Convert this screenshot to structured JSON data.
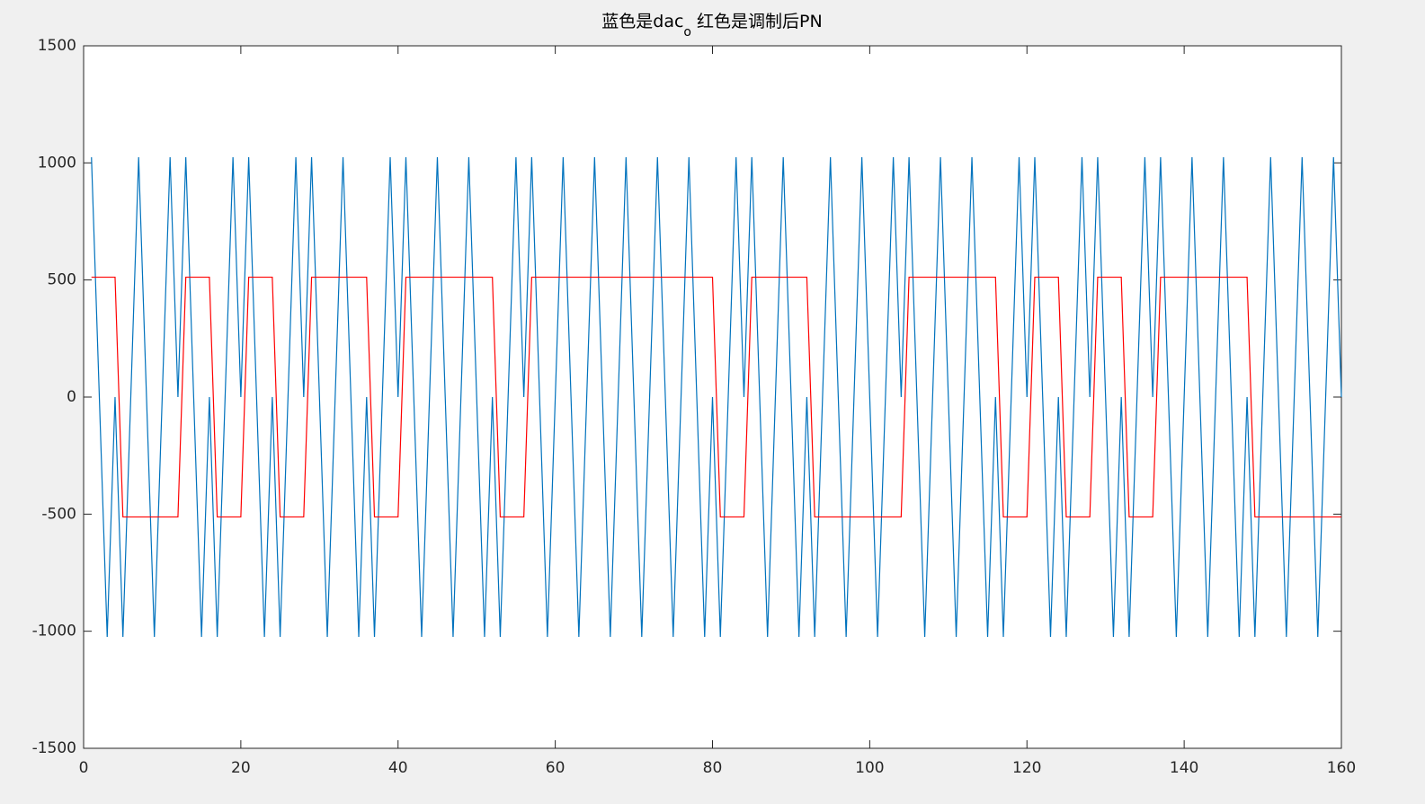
{
  "chart_data": {
    "type": "line",
    "title_parts": [
      "蓝色是dac",
      "o",
      " 红色是调制后PN"
    ],
    "x": [
      1,
      2,
      3,
      4,
      5,
      6,
      7,
      8,
      9,
      10,
      11,
      12,
      13,
      14,
      15,
      16,
      17,
      18,
      19,
      20,
      21,
      22,
      23,
      24,
      25,
      26,
      27,
      28,
      29,
      30,
      31,
      32,
      33,
      34,
      35,
      36,
      37,
      38,
      39,
      40,
      41,
      42,
      43,
      44,
      45,
      46,
      47,
      48,
      49,
      50,
      51,
      52,
      53,
      54,
      55,
      56,
      57,
      58,
      59,
      60,
      61,
      62,
      63,
      64,
      65,
      66,
      67,
      68,
      69,
      70,
      71,
      72,
      73,
      74,
      75,
      76,
      77,
      78,
      79,
      80,
      81,
      82,
      83,
      84,
      85,
      86,
      87,
      88,
      89,
      90,
      91,
      92,
      93,
      94,
      95,
      96,
      97,
      98,
      99,
      100,
      101,
      102,
      103,
      104,
      105,
      106,
      107,
      108,
      109,
      110,
      111,
      112,
      113,
      114,
      115,
      116,
      117,
      118,
      119,
      120,
      121,
      122,
      123,
      124,
      125,
      126,
      127,
      128,
      129,
      130,
      131,
      132,
      133,
      134,
      135,
      136,
      137,
      138,
      139,
      140,
      141,
      142,
      143,
      144,
      145,
      146,
      147,
      148,
      149,
      150,
      151,
      152,
      153,
      154,
      155,
      156,
      157,
      158,
      159,
      160
    ],
    "series": [
      {
        "color": "#0072bd",
        "values": [
          1024,
          0,
          -1024,
          0,
          -1024,
          0,
          1024,
          0,
          -1024,
          0,
          1024,
          0,
          1024,
          0,
          -1024,
          0,
          -1024,
          0,
          1024,
          0,
          1024,
          0,
          -1024,
          0,
          -1024,
          0,
          1024,
          0,
          1024,
          0,
          -1024,
          0,
          1024,
          0,
          -1024,
          0,
          -1024,
          0,
          1024,
          0,
          1024,
          0,
          -1024,
          0,
          1024,
          0,
          -1024,
          0,
          1024,
          0,
          -1024,
          0,
          -1024,
          0,
          1024,
          0,
          1024,
          0,
          -1024,
          0,
          1024,
          0,
          -1024,
          0,
          1024,
          0,
          -1024,
          0,
          1024,
          0,
          -1024,
          0,
          1024,
          0,
          -1024,
          0,
          1024,
          0,
          -1024,
          0,
          -1024,
          0,
          1024,
          0,
          1024,
          0,
          -1024,
          0,
          1024,
          0,
          -1024,
          0,
          -1024,
          0,
          1024,
          0,
          -1024,
          0,
          1024,
          0,
          -1024,
          0,
          1024,
          0,
          1024,
          0,
          -1024,
          0,
          1024,
          0,
          -1024,
          0,
          1024,
          0,
          -1024,
          0,
          -1024,
          0,
          1024,
          0,
          1024,
          0,
          -1024,
          0,
          -1024,
          0,
          1024,
          0,
          1024,
          0,
          -1024,
          0,
          -1024,
          0,
          1024,
          0,
          1024,
          0,
          -1024,
          0,
          1024,
          0,
          -1024,
          0,
          1024,
          0,
          -1024,
          0,
          -1024,
          0,
          1024,
          0,
          -1024,
          0,
          1024,
          0,
          -1024,
          0,
          1024,
          0
        ]
      },
      {
        "color": "#ff0000",
        "values": [
          512,
          512,
          512,
          512,
          -512,
          -512,
          -512,
          -512,
          -512,
          -512,
          -512,
          -512,
          512,
          512,
          512,
          512,
          -512,
          -512,
          -512,
          -512,
          512,
          512,
          512,
          512,
          -512,
          -512,
          -512,
          -512,
          512,
          512,
          512,
          512,
          512,
          512,
          512,
          512,
          -512,
          -512,
          -512,
          -512,
          512,
          512,
          512,
          512,
          512,
          512,
          512,
          512,
          512,
          512,
          512,
          512,
          -512,
          -512,
          -512,
          -512,
          512,
          512,
          512,
          512,
          512,
          512,
          512,
          512,
          512,
          512,
          512,
          512,
          512,
          512,
          512,
          512,
          512,
          512,
          512,
          512,
          512,
          512,
          512,
          512,
          -512,
          -512,
          -512,
          -512,
          512,
          512,
          512,
          512,
          512,
          512,
          512,
          512,
          -512,
          -512,
          -512,
          -512,
          -512,
          -512,
          -512,
          -512,
          -512,
          -512,
          -512,
          -512,
          512,
          512,
          512,
          512,
          512,
          512,
          512,
          512,
          512,
          512,
          512,
          512,
          -512,
          -512,
          -512,
          -512,
          512,
          512,
          512,
          512,
          -512,
          -512,
          -512,
          -512,
          512,
          512,
          512,
          512,
          -512,
          -512,
          -512,
          -512,
          512,
          512,
          512,
          512,
          512,
          512,
          512,
          512,
          512,
          512,
          512,
          512,
          -512,
          -512,
          -512,
          -512,
          -512,
          -512,
          -512,
          -512,
          -512,
          -512,
          -512,
          -512
        ]
      }
    ],
    "xlim": [
      0,
      160
    ],
    "xticks": [
      0,
      20,
      40,
      60,
      80,
      100,
      120,
      140,
      160
    ],
    "ylim": [
      -1500,
      1500
    ],
    "yticks": [
      -1500,
      -1000,
      -500,
      0,
      500,
      1000,
      1500
    ]
  }
}
